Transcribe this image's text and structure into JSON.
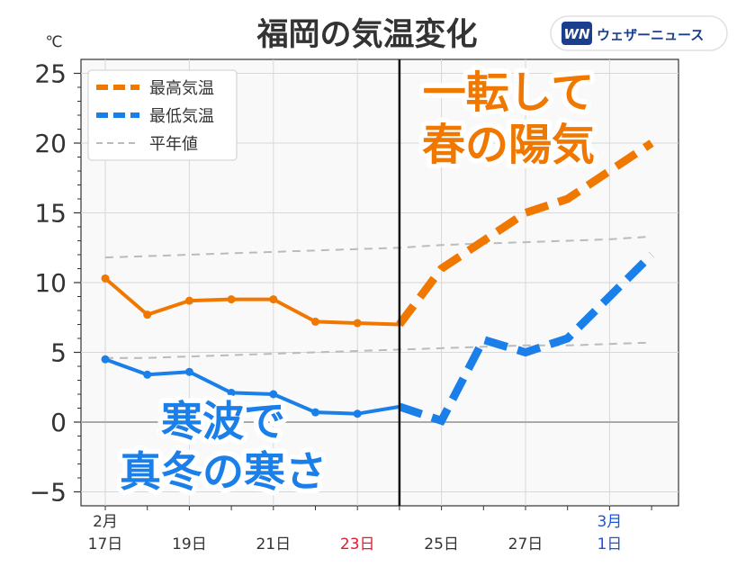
{
  "title": "福岡の気温変化",
  "brand": {
    "logo_mark": "WN",
    "name": "ウェザーニュース",
    "color": "#1a3f8f"
  },
  "chart_data": {
    "type": "line",
    "unit": "℃",
    "x": [
      "2/17",
      "2/18",
      "2/19",
      "2/20",
      "2/21",
      "2/22",
      "2/23",
      "2/24",
      "2/25",
      "2/26",
      "2/27",
      "2/28",
      "3/1",
      "3/2"
    ],
    "x_tick_labels": [
      {
        "index": 0,
        "month": "2月",
        "day": "17日",
        "color": "#333333"
      },
      {
        "index": 2,
        "day": "19日",
        "color": "#333333"
      },
      {
        "index": 4,
        "day": "21日",
        "color": "#333333"
      },
      {
        "index": 6,
        "day": "23日",
        "color": "#e8192c"
      },
      {
        "index": 8,
        "day": "25日",
        "color": "#333333"
      },
      {
        "index": 10,
        "day": "27日",
        "color": "#333333"
      },
      {
        "index": 12,
        "month": "3月",
        "day": "1日",
        "color": "#1a55e0"
      }
    ],
    "y_ticks": [
      -5,
      0,
      5,
      10,
      15,
      20,
      25
    ],
    "y_tick_labels": [
      "−5",
      "0",
      "5",
      "10",
      "15",
      "20",
      "25"
    ],
    "ylim": [
      -6,
      26
    ],
    "forecast_start_index": 7,
    "series": [
      {
        "name": "最高気温",
        "color": "#f07800",
        "values": [
          10.3,
          7.7,
          8.7,
          8.8,
          8.8,
          7.2,
          7.1,
          7.0,
          11.0,
          13.0,
          15.0,
          16.0,
          18.0,
          20.0
        ]
      },
      {
        "name": "最低気温",
        "color": "#1a7fe8",
        "values": [
          4.5,
          3.4,
          3.6,
          2.1,
          2.0,
          0.7,
          0.6,
          1.1,
          0.1,
          5.9,
          5.0,
          6.0,
          9.0,
          12.0
        ]
      },
      {
        "name": "平年値",
        "color": "#bbbbbb",
        "style": "normal",
        "values": [
          11.8,
          11.9,
          12.0,
          12.1,
          12.2,
          12.3,
          12.4,
          12.5,
          12.7,
          12.8,
          12.9,
          13.0,
          13.1,
          13.3
        ]
      },
      {
        "name": "平年値",
        "color": "#bbbbbb",
        "style": "normal",
        "values": [
          4.6,
          4.6,
          4.7,
          4.8,
          4.9,
          5.0,
          5.1,
          5.2,
          5.3,
          5.4,
          5.5,
          5.5,
          5.6,
          5.7
        ]
      }
    ],
    "legend": {
      "placement": "top-left",
      "items": [
        {
          "label": "最高気温",
          "color": "#f07800",
          "style": "thick-dash"
        },
        {
          "label": "最低気温",
          "color": "#1a7fe8",
          "style": "thick-dash"
        },
        {
          "label": "平年値",
          "color": "#bbbbbb",
          "style": "thin-dash"
        }
      ]
    },
    "annotations": [
      {
        "text_lines": [
          "一転して",
          "春の陽気"
        ],
        "color": "#f07800"
      },
      {
        "text_lines": [
          "寒波で",
          "真冬の寒さ"
        ],
        "color": "#1a7fe8"
      }
    ],
    "grid": true
  }
}
